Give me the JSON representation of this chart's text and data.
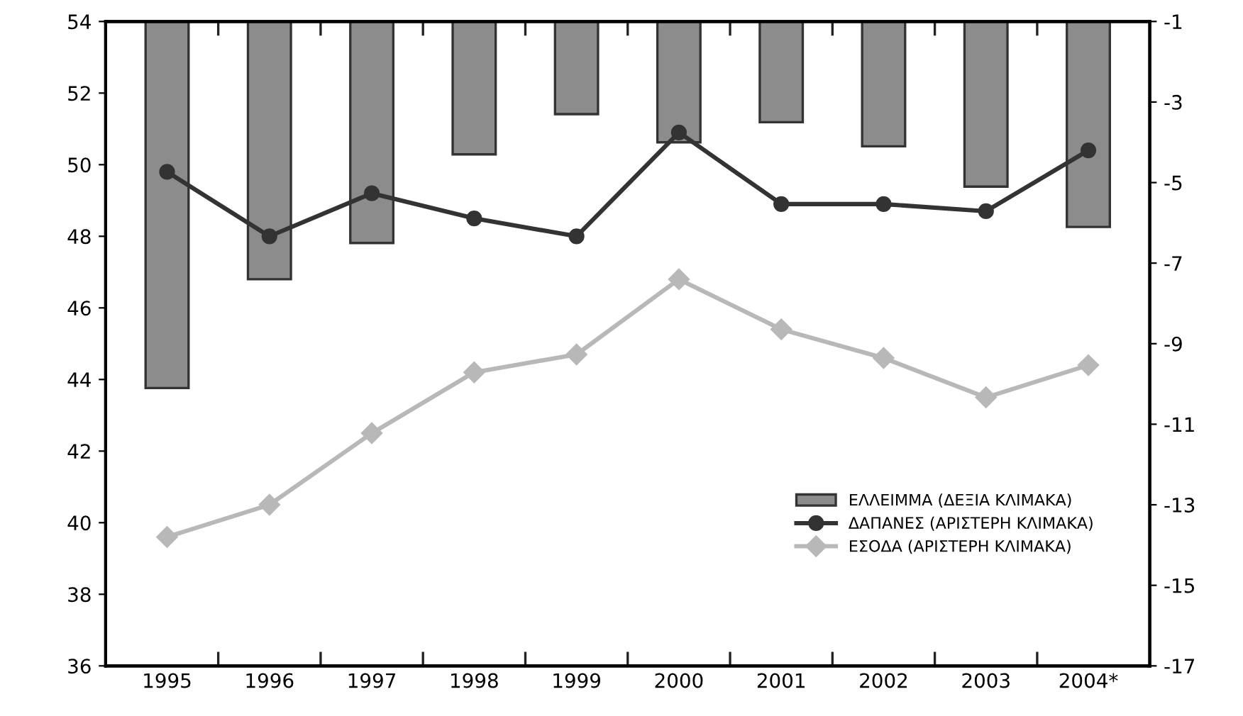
{
  "chart_data": {
    "type": "bar",
    "categories": [
      "1995",
      "1996",
      "1997",
      "1998",
      "1999",
      "2000",
      "2001",
      "2002",
      "2003",
      "2004*"
    ],
    "series": [
      {
        "name": "ΕΛΛΕΙΜΜΑ (ΔΕΞΙΑ ΚΛΙΜΑΚΑ)",
        "axis": "y2",
        "color": "#8c8c8c",
        "values": [
          -10.1,
          -7.4,
          -6.5,
          -4.3,
          -3.3,
          -4.0,
          -3.5,
          -4.1,
          -5.1,
          -6.1
        ]
      },
      {
        "name": "ΔΑΠΑΝΕΣ (ΑΡΙΣΤΕΡΗ ΚΛΙΜΑΚΑ)",
        "type": "line",
        "color": "#333333",
        "marker": "circle",
        "values": [
          49.8,
          48.0,
          49.2,
          48.5,
          48.0,
          50.9,
          48.9,
          48.9,
          48.7,
          50.4
        ]
      },
      {
        "name": "ΕΣΟΔΑ (ΑΡΙΣΤΕΡΗ ΚΛΙΜΑΚΑ)",
        "type": "line",
        "color": "#b8b8b8",
        "marker": "diamond",
        "values": [
          39.6,
          40.5,
          42.5,
          44.2,
          44.7,
          46.8,
          45.4,
          44.6,
          43.5,
          44.4
        ]
      }
    ],
    "ylim": [
      36,
      54
    ],
    "yticks": [
      36,
      38,
      40,
      42,
      44,
      46,
      48,
      50,
      52,
      54
    ],
    "y2lim": [
      -17,
      -1
    ],
    "y2ticks": [
      -17,
      -15,
      -13,
      -11,
      -9,
      -7,
      -5,
      -3,
      -1
    ],
    "grid": false,
    "legend": "bottom right"
  }
}
